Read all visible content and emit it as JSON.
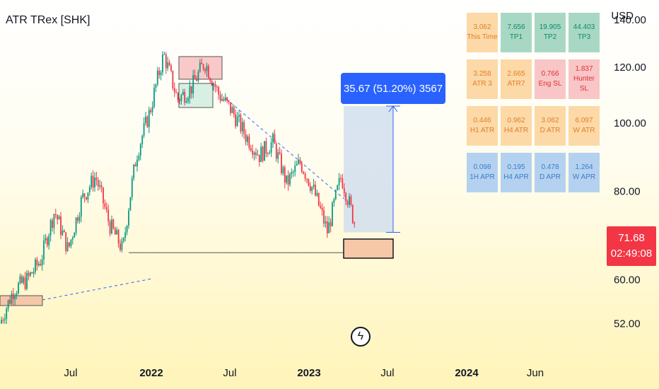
{
  "header": {
    "symbol": "ATR TRex [SHK]",
    "currency": "USD"
  },
  "price_badge": {
    "price": "71.68",
    "countdown": "02:49:08"
  },
  "measure": {
    "label": "35.67 (51.20%) 3567"
  },
  "colors": {
    "up": "#089981",
    "down": "#f23645",
    "accent": "#2962ff",
    "badge": "#f23645"
  },
  "icons": {
    "replay": "lightning-icon"
  },
  "atr_table": [
    [
      {
        "value": "3.062",
        "label": "This Time",
        "bg": "#fcd9a6",
        "fg": "#e0802a"
      },
      {
        "value": "7.656",
        "label": "TP1",
        "bg": "#a8d8c4",
        "fg": "#0b8a6a"
      },
      {
        "value": "19.905",
        "label": "TP2",
        "bg": "#a8d8c4",
        "fg": "#0b8a6a"
      },
      {
        "value": "44.403",
        "label": "TP3",
        "bg": "#a8d8c4",
        "fg": "#0b8a6a"
      }
    ],
    [
      {
        "value": "3.258",
        "label": "ATR 3",
        "bg": "#fcd9a6",
        "fg": "#e0802a"
      },
      {
        "value": "2.665",
        "label": "ATR7",
        "bg": "#fcd9a6",
        "fg": "#e0802a"
      },
      {
        "value": "0.766",
        "label": "Eng SL",
        "bg": "#f8c6c6",
        "fg": "#e0303a"
      },
      {
        "value": "1.837",
        "label": "Hunter SL",
        "bg": "#f8c6c6",
        "fg": "#e0303a"
      }
    ],
    [
      {
        "value": "0.446",
        "label": "H1 ATR",
        "bg": "#fcd9a6",
        "fg": "#e0802a"
      },
      {
        "value": "0.962",
        "label": "H4 ATR",
        "bg": "#fcd9a6",
        "fg": "#e0802a"
      },
      {
        "value": "3.062",
        "label": "D ATR",
        "bg": "#fcd9a6",
        "fg": "#e0802a"
      },
      {
        "value": "6.097",
        "label": "W ATR",
        "bg": "#fcd9a6",
        "fg": "#e0802a"
      }
    ],
    [
      {
        "value": "0.098",
        "label": "1H APR",
        "bg": "#b4d2ef",
        "fg": "#3b7bd0"
      },
      {
        "value": "0.195",
        "label": "H4 APR",
        "bg": "#b4d2ef",
        "fg": "#3b7bd0"
      },
      {
        "value": "0.478",
        "label": "D APR",
        "bg": "#b4d2ef",
        "fg": "#3b7bd0"
      },
      {
        "value": "1.264",
        "label": "W APR",
        "bg": "#b4d2ef",
        "fg": "#3b7bd0"
      }
    ]
  ],
  "chart_data": {
    "type": "line",
    "title": "ATR TRex [SHK]",
    "xlabel": "",
    "ylabel": "USD",
    "y_scale": "log",
    "ylim": [
      48,
      140
    ],
    "y_ticks": [
      "52.00",
      "60.00",
      "80.00",
      "100.00",
      "120.00",
      "140.00"
    ],
    "x_ticks": [
      "Jul",
      "2022",
      "Jul",
      "2023",
      "Jul",
      "2024",
      "Jun"
    ],
    "series": [
      {
        "x": [
          "2021-03",
          "2021-04",
          "2021-05",
          "2021-06",
          "2021-07",
          "2021-08",
          "2021-09",
          "2021-10",
          "2021-11",
          "2021-12",
          "2022-01",
          "2022-02",
          "2022-03",
          "2022-04",
          "2022-05",
          "2022-06",
          "2022-07",
          "2022-08",
          "2022-09",
          "2022-10",
          "2022-11",
          "2022-12",
          "2023-01",
          "2023-02",
          "2023-03",
          "2023-04",
          "2023-05"
        ],
        "values": [
          52,
          58,
          60,
          64,
          75,
          66,
          78,
          84,
          72,
          66,
          90,
          104,
          125,
          108,
          112,
          122,
          110,
          104,
          96,
          90,
          94,
          82,
          88,
          80,
          70,
          84,
          72
        ]
      }
    ],
    "annotations": {
      "measure_range": {
        "from": 70.0,
        "to": 105.67,
        "change": "35.67 (51.20%) 3567"
      },
      "support_level": 65.5
    }
  }
}
